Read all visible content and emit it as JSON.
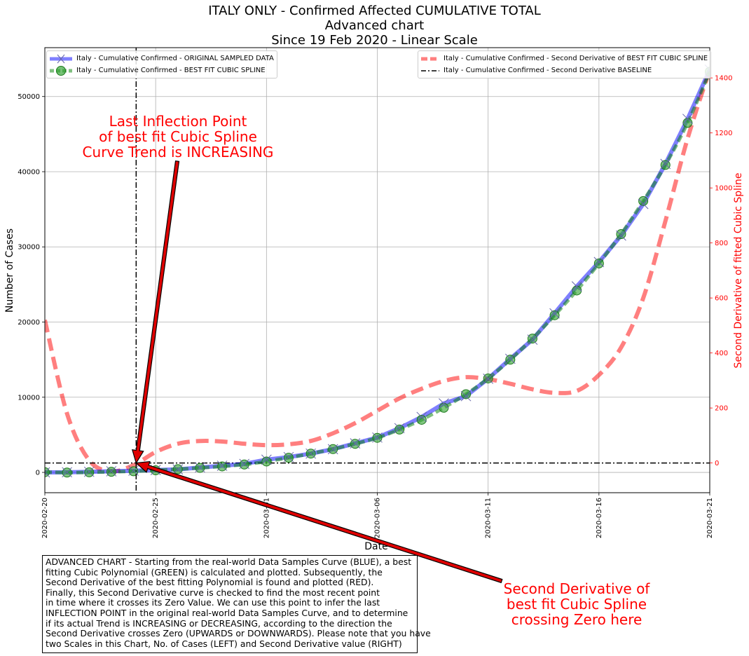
{
  "title_lines": [
    "ITALY ONLY - Confirmed Affected CUMULATIVE TOTAL",
    "Advanced chart",
    "Since 19 Feb 2020 - Linear Scale"
  ],
  "legend_left": [
    "Italy - Cumulative Confirmed - ORIGINAL SAMPLED DATA",
    "Italy - Cumulative Confirmed - BEST FIT CUBIC SPLINE"
  ],
  "legend_right": [
    "Italy - Cumulative Confirmed - Second Derivative of BEST FIT CUBIC SPLINE",
    "Italy - Cumulative Confirmed - Second Derivative BASELINE"
  ],
  "annotation_top": [
    "Last Inflection Point",
    "of best fit Cubic Spline",
    "Curve Trend is INCREASING"
  ],
  "annotation_bottom": [
    "Second Derivative of",
    "best fit Cubic Spline",
    "crossing Zero here"
  ],
  "note_lines": [
    "ADVANCED CHART - Starting from the real-world Data Samples Curve (BLUE), a best",
    "fitting Cubic Polynomial (GREEN) is calculated and plotted. Subsequently, the",
    "Second Derivative of the best fitting Polynomial is found and plotted (RED).",
    "Finally, this Second Derivative curve is checked to find the most recent point",
    "in time where it crosses its Zero Value. We can use this point to infer the last",
    "INFLECTION POINT in the original real-world Data Samples Curve, and to determine",
    "if its actual Trend is INCREASING or DECREASING, according to the direction the",
    "Second Derivative crosses Zero (UPWARDS or DOWNWARDS). Please note that you have",
    "two Scales in this Chart, No. of Cases (LEFT) and Second Derivative value (RIGHT)"
  ],
  "colors": {
    "original": "#0000ff",
    "spline": "#008000",
    "second_derivative": "#ff0000",
    "baseline": "#000000",
    "annotation": "#ff0000",
    "arrow_fill": "#e00000"
  },
  "chart_data": {
    "type": "line",
    "title": "ITALY ONLY - Confirmed Affected CUMULATIVE TOTAL\nAdvanced chart\nSince 19 Feb 2020 - Linear Scale",
    "xlabel": "Date",
    "ylabel": "Number of Cases",
    "y2label": "Second Derivative of fitted Cubic Spline",
    "x_ticks": [
      "2020-02-20",
      "2020-02-25",
      "2020-03-01",
      "2020-03-06",
      "2020-03-11",
      "2020-03-16",
      "2020-03-21"
    ],
    "xlim": [
      "2020-02-20",
      "2020-03-21"
    ],
    "ylim": [
      -2700,
      56500
    ],
    "y_ticks": [
      0,
      10000,
      20000,
      30000,
      40000,
      50000
    ],
    "y2lim": [
      -108,
      1510
    ],
    "y2_ticks": [
      0,
      200,
      400,
      600,
      800,
      1000,
      1200,
      1400
    ],
    "grid": true,
    "legend_placement": [
      "upper left",
      "upper right"
    ],
    "inflection_date": "2020-02-24",
    "series": [
      {
        "name": "Italy - Cumulative Confirmed - ORIGINAL SAMPLED DATA",
        "axis": "left",
        "x": [
          "2020-02-20",
          "2020-02-21",
          "2020-02-22",
          "2020-02-23",
          "2020-02-24",
          "2020-02-25",
          "2020-02-26",
          "2020-02-27",
          "2020-02-28",
          "2020-02-29",
          "2020-03-01",
          "2020-03-02",
          "2020-03-03",
          "2020-03-04",
          "2020-03-05",
          "2020-03-06",
          "2020-03-07",
          "2020-03-08",
          "2020-03-09",
          "2020-03-10",
          "2020-03-11",
          "2020-03-12",
          "2020-03-13",
          "2020-03-14",
          "2020-03-15",
          "2020-03-16",
          "2020-03-17",
          "2020-03-18",
          "2020-03-19",
          "2020-03-20",
          "2020-03-21"
        ],
        "values": [
          3,
          20,
          79,
          150,
          229,
          322,
          400,
          650,
          888,
          1128,
          1694,
          2036,
          2502,
          3089,
          3858,
          4636,
          5883,
          7375,
          9172,
          10149,
          12462,
          15113,
          17660,
          21157,
          24747,
          27980,
          31506,
          35713,
          41035,
          47021,
          53578
        ]
      },
      {
        "name": "Italy - Cumulative Confirmed - BEST FIT CUBIC SPLINE",
        "axis": "left",
        "x": [
          "2020-02-20",
          "2020-02-21",
          "2020-02-22",
          "2020-02-23",
          "2020-02-24",
          "2020-02-25",
          "2020-02-26",
          "2020-02-27",
          "2020-02-28",
          "2020-02-29",
          "2020-03-01",
          "2020-03-02",
          "2020-03-03",
          "2020-03-04",
          "2020-03-05",
          "2020-03-06",
          "2020-03-07",
          "2020-03-08",
          "2020-03-09",
          "2020-03-10",
          "2020-03-11",
          "2020-03-12",
          "2020-03-13",
          "2020-03-14",
          "2020-03-15",
          "2020-03-16",
          "2020-03-17",
          "2020-03-18",
          "2020-03-19",
          "2020-03-20",
          "2020-03-21"
        ],
        "values": [
          30,
          -20,
          10,
          80,
          150,
          280,
          430,
          600,
          800,
          1050,
          1450,
          1950,
          2500,
          3100,
          3800,
          4600,
          5700,
          7000,
          8600,
          10400,
          12500,
          15000,
          17800,
          20900,
          24200,
          27800,
          31700,
          36100,
          40900,
          46500,
          53300
        ]
      },
      {
        "name": "Italy - Cumulative Confirmed - Second Derivative of BEST FIT CUBIC SPLINE",
        "axis": "right",
        "x": [
          "2020-02-20",
          "2020-02-21",
          "2020-02-22",
          "2020-02-23",
          "2020-02-24",
          "2020-02-25",
          "2020-02-26",
          "2020-02-27",
          "2020-02-28",
          "2020-02-29",
          "2020-03-01",
          "2020-03-02",
          "2020-03-03",
          "2020-03-04",
          "2020-03-05",
          "2020-03-06",
          "2020-03-07",
          "2020-03-08",
          "2020-03-09",
          "2020-03-10",
          "2020-03-11",
          "2020-03-12",
          "2020-03-13",
          "2020-03-14",
          "2020-03-15",
          "2020-03-16",
          "2020-03-17",
          "2020-03-18",
          "2020-03-19",
          "2020-03-20",
          "2020-03-21"
        ],
        "values": [
          520,
          180,
          10,
          -30,
          -8,
          40,
          70,
          80,
          78,
          70,
          65,
          68,
          80,
          108,
          145,
          190,
          235,
          270,
          298,
          312,
          305,
          288,
          268,
          255,
          262,
          320,
          420,
          600,
          880,
          1180,
          1430
        ]
      },
      {
        "name": "Italy - Cumulative Confirmed - Second Derivative BASELINE",
        "axis": "right",
        "x": [
          "2020-02-20",
          "2020-03-21"
        ],
        "values": [
          0,
          0
        ]
      }
    ]
  }
}
